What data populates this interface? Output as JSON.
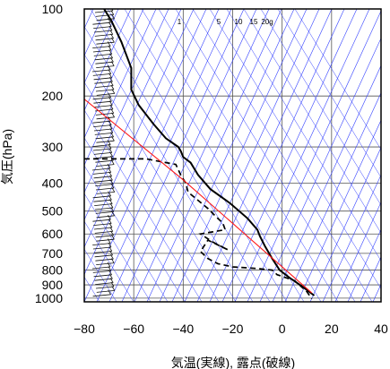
{
  "chart_data": {
    "type": "line",
    "title": "",
    "xlabel": "気温(実線), 露点(破線)",
    "ylabel": "気圧(hPa)",
    "x_range": [
      -80,
      40
    ],
    "y_range": [
      1000,
      100
    ],
    "y_scale": "log",
    "x_ticks": [
      "−80",
      "−60",
      "−40",
      "−20",
      "0",
      "20",
      "40"
    ],
    "y_ticks": [
      "100",
      "200",
      "300",
      "400",
      "500",
      "600",
      "700",
      "800",
      "900",
      "1000"
    ],
    "mixing_ratio_labels": [
      "1",
      "5",
      "10",
      "15",
      "20g"
    ],
    "grid": true,
    "series": [
      {
        "style": "solid-black",
        "points": [
          [
            -72,
            100
          ],
          [
            -69,
            110
          ],
          [
            -65,
            130
          ],
          [
            -61,
            160
          ],
          [
            -61,
            190
          ],
          [
            -58,
            215
          ],
          [
            -52,
            250
          ],
          [
            -47,
            280
          ],
          [
            -42,
            300
          ],
          [
            -41,
            310
          ],
          [
            -40,
            325
          ],
          [
            -37,
            340
          ],
          [
            -34,
            375
          ],
          [
            -29,
            420
          ],
          [
            -21,
            470
          ],
          [
            -14,
            530
          ],
          [
            -10,
            580
          ],
          [
            -9,
            610
          ],
          [
            -7,
            660
          ],
          [
            -4,
            730
          ],
          [
            -1,
            800
          ],
          [
            3,
            850
          ],
          [
            8,
            910
          ],
          [
            13,
            980
          ]
        ]
      },
      {
        "style": "dashed-black",
        "points": [
          [
            -80,
            330
          ],
          [
            -55,
            330
          ],
          [
            -43,
            345
          ],
          [
            -41,
            375
          ],
          [
            -39,
            400
          ],
          [
            -38,
            430
          ],
          [
            -30,
            490
          ],
          [
            -27,
            520
          ],
          [
            -24,
            550
          ],
          [
            -23,
            580
          ],
          [
            -33,
            600
          ],
          [
            -28,
            640
          ],
          [
            -22,
            680
          ],
          [
            -30,
            630
          ],
          [
            -33,
            690
          ],
          [
            -30,
            730
          ],
          [
            -26,
            760
          ],
          [
            -20,
            780
          ],
          [
            -10,
            790
          ],
          [
            -4,
            800
          ],
          [
            -2,
            830
          ],
          [
            5,
            870
          ],
          [
            10,
            950
          ],
          [
            12,
            1005
          ]
        ]
      },
      {
        "style": "solid-red",
        "points": [
          [
            -80,
            205
          ],
          [
            -40,
            390
          ],
          [
            12,
            960
          ]
        ]
      }
    ]
  }
}
